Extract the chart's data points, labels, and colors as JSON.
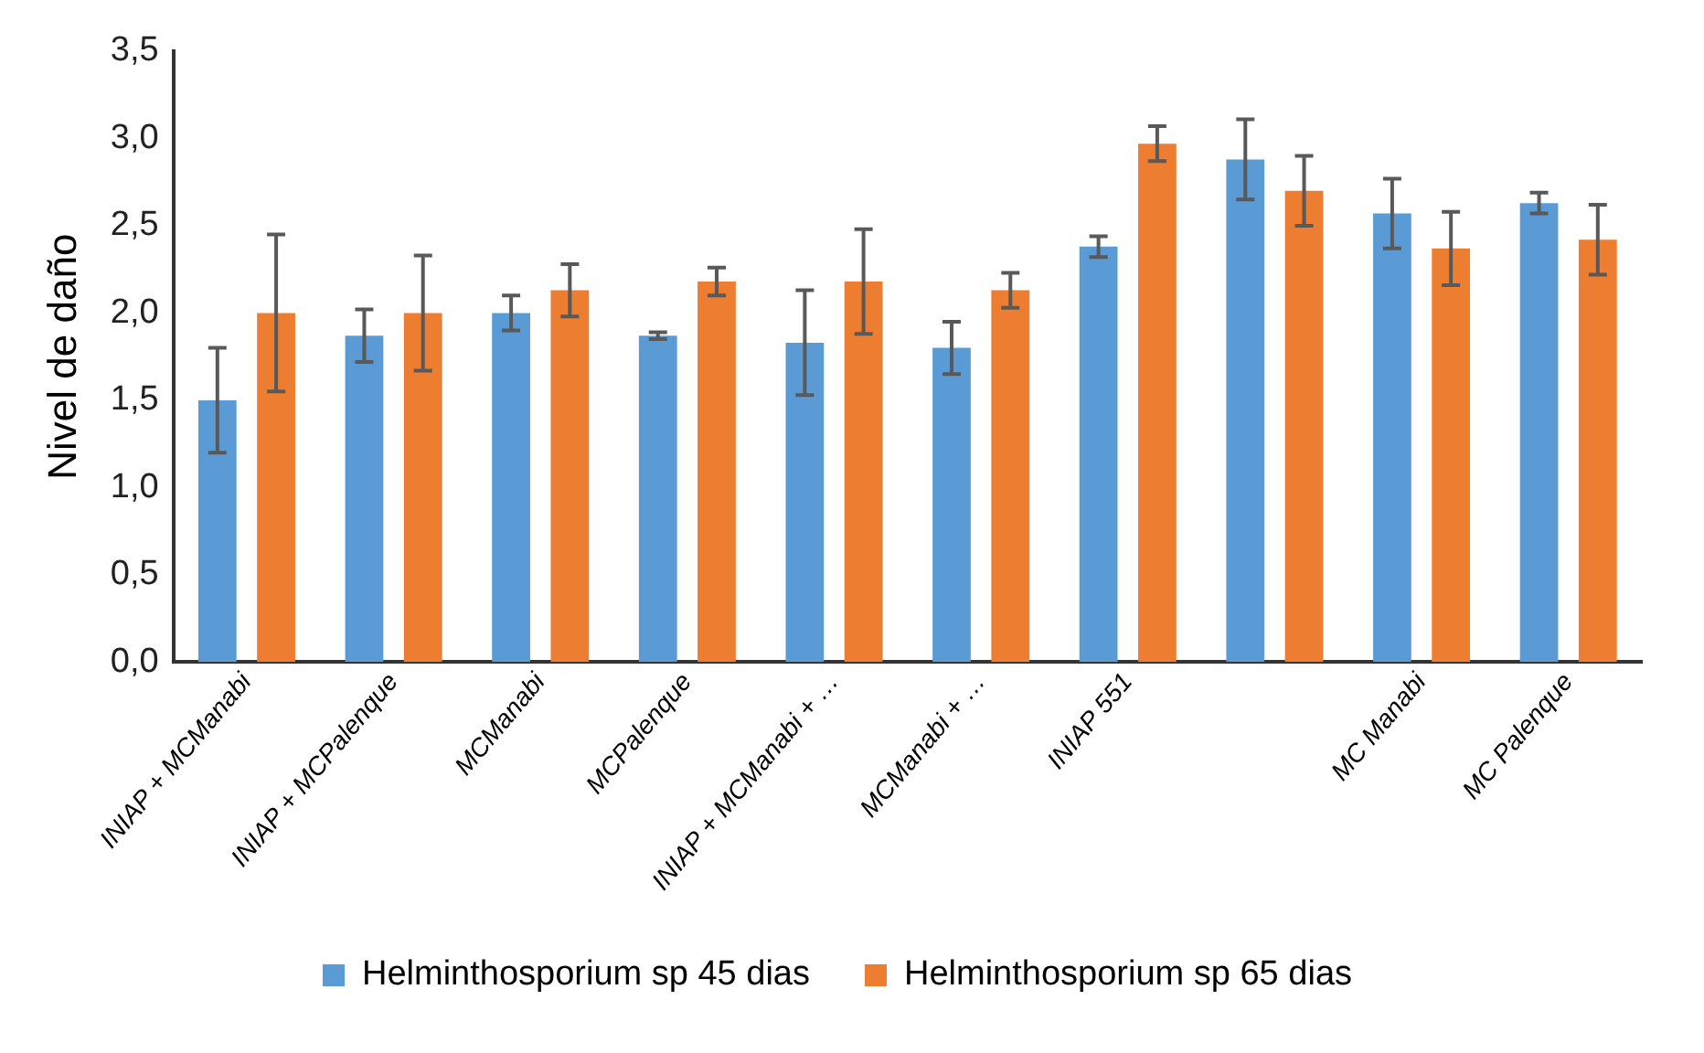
{
  "chart_data": {
    "type": "bar",
    "ylabel": "Nivel de daño",
    "categories": [
      "INIAP + MCManabi",
      "INIAP + MCPalenque",
      "MCManabi",
      "MCPalenque",
      "INIAP + MCManabi + …",
      "MCManabi + …",
      "INIAP 551",
      null,
      "MC Manabi",
      "MC Palenque"
    ],
    "series": [
      {
        "name": "Helminthosporium sp 45 dias",
        "color": "#5b9bd5",
        "values": [
          1.5,
          1.87,
          2.0,
          1.87,
          1.83,
          1.8,
          2.38,
          2.88,
          2.57,
          2.63
        ],
        "errors": [
          0.3,
          0.15,
          0.1,
          0.02,
          0.3,
          0.15,
          0.06,
          0.23,
          0.2,
          0.06
        ]
      },
      {
        "name": "Helminthosporium sp 65 dias",
        "color": "#ed7d31",
        "values": [
          2.0,
          2.0,
          2.13,
          2.18,
          2.18,
          2.13,
          2.97,
          2.7,
          2.37,
          2.42
        ],
        "errors": [
          0.45,
          0.33,
          0.15,
          0.08,
          0.3,
          0.1,
          0.1,
          0.2,
          0.21,
          0.2
        ]
      }
    ],
    "ylim": [
      0,
      3.5
    ],
    "yticks": [
      {
        "value": 0,
        "label": "0,0"
      },
      {
        "value": 0.5,
        "label": "0,5"
      },
      {
        "value": 1,
        "label": "1,0"
      },
      {
        "value": 1.5,
        "label": "1,5"
      },
      {
        "value": 2,
        "label": "2,0"
      },
      {
        "value": 2.5,
        "label": "2,5"
      },
      {
        "value": 3,
        "label": "3,0"
      },
      {
        "value": 3.5,
        "label": "3,5"
      }
    ],
    "grid": false,
    "legend": "bottom"
  }
}
